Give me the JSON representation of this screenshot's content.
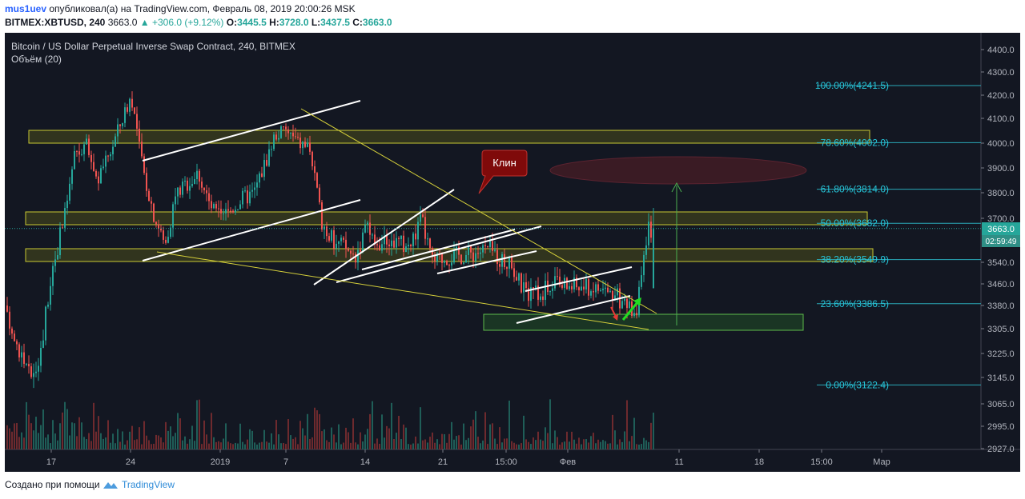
{
  "header": {
    "username": "mus1uev",
    "published_text": "опубликовал(а) на TradingView.com, Февраль 08, 2019 20:00:26 MSK"
  },
  "ticker": {
    "symbol": "BITMEX:XBTUSD, 240",
    "last": "3663.0",
    "change": "+306.0 (+9.12%)",
    "o_label": "O:",
    "o": "3445.5",
    "h_label": "H:",
    "h": "3728.0",
    "l_label": "L:",
    "l": "3437.5",
    "c_label": "C:",
    "c": "3663.0"
  },
  "chart_data": {
    "type": "candlestick",
    "title": "Bitcoin / US Dollar Perpetual Inverse Swap Contract, 240, BITMEX",
    "volume_label": "Объём (20)",
    "y_ticks": [
      4400.0,
      4300.0,
      4200.0,
      4100.0,
      4000.0,
      3900.0,
      3800.0,
      3700.0,
      3540.0,
      3460.0,
      3380.0,
      3305.0,
      3225.0,
      3145.0,
      3065.0,
      2995.0,
      2927.0
    ],
    "x_ticks": [
      "17",
      "24",
      "2019",
      "7",
      "14",
      "21",
      "15:00",
      "Фев",
      "11",
      "18",
      "15:00",
      "Мар"
    ],
    "price_label": "3663.0",
    "countdown_label": "02:59:49",
    "fibonacci": [
      {
        "label": "100.00%(4241.5)",
        "price": 4241.5
      },
      {
        "label": "78.60%(4002.0)",
        "price": 4002.0
      },
      {
        "label": "61.80%(3814.0)",
        "price": 3814.0
      },
      {
        "label": "50.00%(3682.0)",
        "price": 3682.0
      },
      {
        "label": "38.20%(3549.9)",
        "price": 3549.9
      },
      {
        "label": "23.60%(3386.5)",
        "price": 3386.5
      },
      {
        "label": "0.00%(3122.4)",
        "price": 3122.4
      }
    ],
    "annotation": "Клин",
    "price_path": [
      [
        "Dec 12",
        3420
      ],
      [
        "Dec 14",
        3250
      ],
      [
        "Dec 15",
        3150
      ],
      [
        "Dec 16",
        3230
      ],
      [
        "Dec 17",
        3520
      ],
      [
        "Dec 18",
        3680
      ],
      [
        "Dec 19",
        3950
      ],
      [
        "Dec 20",
        4000
      ],
      [
        "Dec 21",
        3850
      ],
      [
        "Dec 22",
        3950
      ],
      [
        "Dec 24",
        4200
      ],
      [
        "Dec 25",
        3900
      ],
      [
        "Dec 26",
        3720
      ],
      [
        "Dec 27",
        3600
      ],
      [
        "Dec 28",
        3800
      ],
      [
        "Dec 30",
        3880
      ],
      [
        "Dec 31",
        3750
      ],
      [
        "Jan 1",
        3700
      ],
      [
        "Jan 3",
        3780
      ],
      [
        "Jan 4",
        3800
      ],
      [
        "Jan 6",
        4040
      ],
      [
        "Jan 7",
        4050
      ],
      [
        "Jan 8",
        4000
      ],
      [
        "Jan 9",
        3990
      ],
      [
        "Jan 10",
        3700
      ],
      [
        "Jan 11",
        3620
      ],
      [
        "Jan 12",
        3600
      ],
      [
        "Jan 13",
        3560
      ],
      [
        "Jan 14",
        3660
      ],
      [
        "Jan 15",
        3600
      ],
      [
        "Jan 16",
        3620
      ],
      [
        "Jan 18",
        3600
      ],
      [
        "Jan 19",
        3700
      ],
      [
        "Jan 20",
        3540
      ],
      [
        "Jan 21",
        3560
      ],
      [
        "Jan 23",
        3570
      ],
      [
        "Jan 25",
        3590
      ],
      [
        "Jan 27",
        3520
      ],
      [
        "Jan 28",
        3440
      ],
      [
        "Jan 29",
        3420
      ],
      [
        "Jan 31",
        3460
      ],
      [
        "Feb 2",
        3450
      ],
      [
        "Feb 4",
        3440
      ],
      [
        "Feb 5",
        3420
      ],
      [
        "Feb 6",
        3380
      ],
      [
        "Feb 7",
        3370
      ],
      [
        "Feb 8",
        3663
      ]
    ]
  }
}
